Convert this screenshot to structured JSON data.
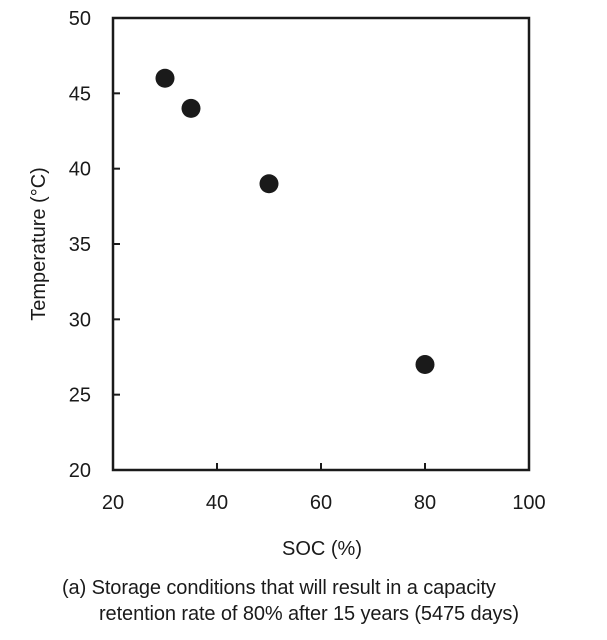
{
  "chart_data": {
    "type": "scatter",
    "xlabel": "SOC (%)",
    "ylabel": "Temperature (°C)",
    "xlim": [
      20,
      100
    ],
    "ylim": [
      20,
      50
    ],
    "xticks": [
      20,
      40,
      60,
      80,
      100
    ],
    "yticks": [
      20,
      25,
      30,
      35,
      40,
      45,
      50
    ],
    "grid": false,
    "legend": "none",
    "points": [
      {
        "x": 30,
        "y": 46
      },
      {
        "x": 35,
        "y": 44
      },
      {
        "x": 50,
        "y": 39
      },
      {
        "x": 80,
        "y": 27
      }
    ],
    "marker_color": "#1a1a1a"
  },
  "caption": {
    "line1": "(a) Storage conditions that will result in a capacity",
    "line2": "retention rate of 80% after 15 years (5475 days)"
  }
}
